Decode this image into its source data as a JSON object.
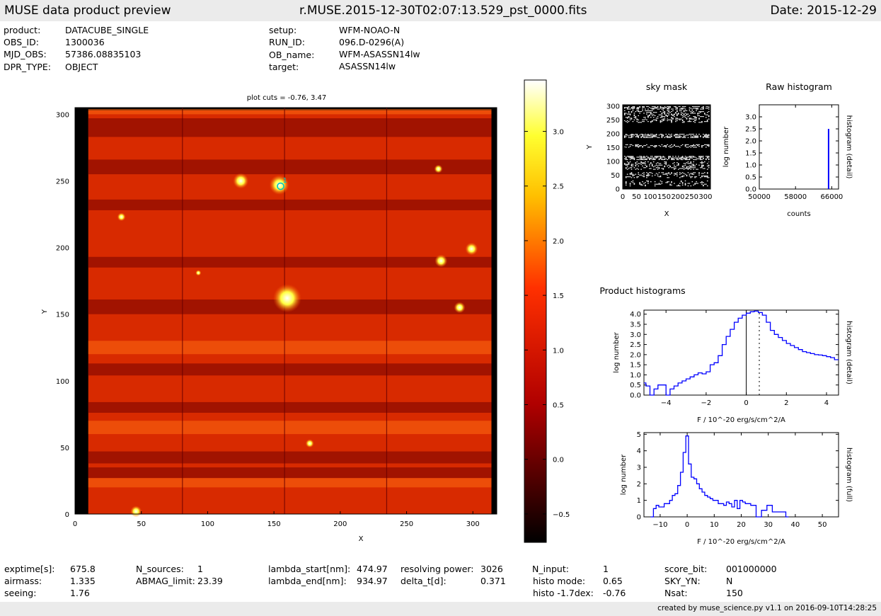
{
  "header": {
    "left": "MUSE data product preview",
    "center": "r.MUSE.2015-12-30T02:07:13.529_pst_0000.fits",
    "right": "Date: 2015-12-29"
  },
  "info_top": [
    {
      "k": "product:",
      "v": "DATACUBE_SINGLE"
    },
    {
      "k": "OBS_ID:",
      "v": "1300036"
    },
    {
      "k": "MJD_OBS:",
      "v": "57386.08835103"
    },
    {
      "k": "DPR_TYPE:",
      "v": "OBJECT"
    },
    {
      "k": "setup:",
      "v": "WFM-NOAO-N"
    },
    {
      "k": "RUN_ID:",
      "v": "096.D-0296(A)"
    },
    {
      "k": "OB_name:",
      "v": "WFM-ASASSN14lw"
    },
    {
      "k": "target:",
      "v": "ASASSN14lw"
    }
  ],
  "info_bottom": [
    {
      "k": "exptime[s]:",
      "v": "675.8"
    },
    {
      "k": "airmass:",
      "v": "1.335"
    },
    {
      "k": "seeing:",
      "v": "1.76"
    },
    {
      "k": "N_sources:",
      "v": "1"
    },
    {
      "k": "ABMAG_limit:",
      "v": "23.39"
    },
    {
      "k": "lambda_start[nm]:",
      "v": "474.97"
    },
    {
      "k": "lambda_end[nm]:",
      "v": "934.97"
    },
    {
      "k": "resolving power:",
      "v": "3026"
    },
    {
      "k": "delta_t[d]:",
      "v": "0.371"
    },
    {
      "k": "N_input:",
      "v": "1"
    },
    {
      "k": "histo mode:",
      "v": "0.65"
    },
    {
      "k": "histo -1.7dex:",
      "v": "-0.76"
    },
    {
      "k": "score_bit:",
      "v": "001000000"
    },
    {
      "k": "SKY_YN:",
      "v": "N"
    },
    {
      "k": "Nsat:",
      "v": "150"
    }
  ],
  "footer": "created by muse_science.py v1.1 on 2016-09-10T14:28:25",
  "colors": {
    "blue": "#0000ff",
    "cyan": "#00c8c8",
    "header_bg": "#ebebeb"
  },
  "chart_data": [
    {
      "type": "heatmap",
      "title": "plot cuts = -0.76, 3.47",
      "xlabel": "X",
      "ylabel": "Y",
      "xlim": [
        0,
        318
      ],
      "ylim": [
        0,
        305
      ],
      "xticks": [
        "0",
        "50",
        "100",
        "150",
        "200",
        "250",
        "300"
      ],
      "yticks": [
        "0",
        "50",
        "100",
        "150",
        "200",
        "250",
        "300"
      ],
      "colormap": "hot",
      "marker": {
        "label": "1",
        "x": 155,
        "y": 246
      },
      "colorbar": {
        "range": [
          -0.76,
          3.47
        ],
        "ticks": [
          "−0.5",
          "0.0",
          "0.5",
          "1.0",
          "1.5",
          "2.0",
          "2.5",
          "3.0"
        ],
        "tick_values": [
          -0.5,
          0.0,
          0.5,
          1.0,
          1.5,
          2.0,
          2.5,
          3.0
        ]
      }
    },
    {
      "type": "heatmap",
      "title": "sky mask",
      "xlabel": "X",
      "ylabel": "Y",
      "xlim": [
        0,
        318
      ],
      "ylim": [
        0,
        305
      ],
      "xticks": [
        "0",
        "50",
        "100",
        "150",
        "200",
        "250",
        "300"
      ],
      "yticks": [
        "0",
        "50",
        "100",
        "150",
        "200",
        "250",
        "300"
      ]
    },
    {
      "type": "line",
      "title": "Raw histogram",
      "xlabel": "counts",
      "ylabel": "log number",
      "right_label": "histogram (detail)",
      "xlim": [
        50000,
        67500
      ],
      "ylim": [
        0,
        3.5
      ],
      "xticks": [
        "50000",
        "58000",
        "66000"
      ],
      "xtick_values": [
        50000,
        58000,
        66000
      ],
      "yticks": [
        "0.0",
        "0.5",
        "1.0",
        "1.5",
        "2.0",
        "2.5",
        "3.0"
      ],
      "series": [
        {
          "x": [
            65300,
            65300
          ],
          "y": [
            0,
            2.5
          ]
        }
      ]
    },
    {
      "type": "line",
      "title": "Product histograms",
      "xlabel": "F / 10^-20 erg/s/cm^2/A",
      "ylabel": "log number",
      "right_label": "histogram (detail)",
      "xlim": [
        -5.1,
        4.6
      ],
      "ylim": [
        0,
        4.2
      ],
      "xticks": [
        "−4",
        "−2",
        "0",
        "2",
        "4"
      ],
      "xtick_values": [
        -4,
        -2,
        0,
        2,
        4
      ],
      "yticks": [
        "0.0",
        "0.5",
        "1.0",
        "1.5",
        "2.0",
        "2.5",
        "3.0",
        "3.5",
        "4.0"
      ],
      "vlines": [
        {
          "x": 0,
          "style": "solid"
        },
        {
          "x": 0.65,
          "style": "dotted"
        }
      ],
      "series": [
        {
          "x": [
            -5.1,
            -4.9,
            -4.7,
            -4.5,
            -4.3,
            -4.1,
            -3.9,
            -3.7,
            -3.5,
            -3.3,
            -3.1,
            -2.9,
            -2.7,
            -2.5,
            -2.3,
            -2.1,
            -1.9,
            -1.7,
            -1.5,
            -1.3,
            -1.1,
            -0.9,
            -0.7,
            -0.5,
            -0.3,
            -0.1,
            0.1,
            0.3,
            0.5,
            0.7,
            0.9,
            1.1,
            1.3,
            1.5,
            1.7,
            1.9,
            2.1,
            2.3,
            2.5,
            2.7,
            2.9,
            3.1,
            3.3,
            3.5,
            3.7,
            3.9,
            4.1,
            4.3,
            4.5
          ],
          "y": [
            0.6,
            0.45,
            0.0,
            0.3,
            0.5,
            0.5,
            0.0,
            0.3,
            0.45,
            0.6,
            0.7,
            0.8,
            0.9,
            1.0,
            1.1,
            1.05,
            1.15,
            1.5,
            1.6,
            1.95,
            2.5,
            2.9,
            3.25,
            3.6,
            3.8,
            3.95,
            4.05,
            4.12,
            4.15,
            4.08,
            3.95,
            3.6,
            3.2,
            3.0,
            2.85,
            2.7,
            2.55,
            2.45,
            2.35,
            2.25,
            2.15,
            2.1,
            2.05,
            2.0,
            1.98,
            1.95,
            1.9,
            1.85,
            1.75
          ]
        }
      ]
    },
    {
      "type": "line",
      "xlabel": "F / 10^-20 erg/s/cm^2/A",
      "ylabel": "log number",
      "right_label": "histogram (full)",
      "xlim": [
        -16,
        56
      ],
      "ylim": [
        0,
        5.1
      ],
      "xticks": [
        "−10",
        "0",
        "10",
        "20",
        "30",
        "40",
        "50"
      ],
      "xtick_values": [
        -10,
        0,
        10,
        20,
        30,
        40,
        50
      ],
      "yticks": [
        "0",
        "1",
        "2",
        "3",
        "4",
        "5"
      ],
      "series": [
        {
          "x": [
            -13,
            -12,
            -11,
            -10,
            -9,
            -8,
            -7,
            -6,
            -5,
            -4,
            -3,
            -2,
            -1,
            0,
            1,
            2,
            3,
            4,
            5,
            6,
            7,
            8,
            9,
            10,
            11,
            12,
            13,
            14,
            15,
            16,
            17,
            18,
            19,
            20,
            21,
            22,
            23,
            24,
            25,
            26,
            27,
            28,
            29,
            30,
            31,
            32,
            33,
            34,
            35,
            36,
            37
          ],
          "y": [
            0,
            0.5,
            0.7,
            0.6,
            0.6,
            0.8,
            0.8,
            1.0,
            1.3,
            1.4,
            1.9,
            2.7,
            3.9,
            4.9,
            3.2,
            2.4,
            2.3,
            2.0,
            1.7,
            1.5,
            1.3,
            1.2,
            1.1,
            1.0,
            1.0,
            0.8,
            0.8,
            0.7,
            0.9,
            0.8,
            0.6,
            1.0,
            0.5,
            1.0,
            0.9,
            0.8,
            0.8,
            0.7,
            0.7,
            0,
            0,
            0.4,
            0.4,
            0.7,
            0.7,
            0.3,
            0.3,
            0.3,
            0.3,
            0.3,
            0
          ]
        }
      ]
    }
  ]
}
